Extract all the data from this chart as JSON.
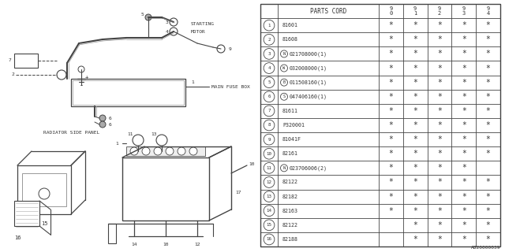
{
  "bg_color": "#ffffff",
  "diagram_code": "A820000039",
  "rows": [
    {
      "num": "1",
      "code": "81601",
      "prefix": "",
      "stars": [
        1,
        1,
        1,
        1,
        1
      ]
    },
    {
      "num": "2",
      "code": "81608",
      "prefix": "",
      "stars": [
        1,
        1,
        1,
        1,
        1
      ]
    },
    {
      "num": "3",
      "code": "021708000(1)",
      "prefix": "N",
      "stars": [
        1,
        1,
        1,
        1,
        1
      ]
    },
    {
      "num": "4",
      "code": "032008000(1)",
      "prefix": "W",
      "stars": [
        1,
        1,
        1,
        1,
        1
      ]
    },
    {
      "num": "5",
      "code": "011508160(1)",
      "prefix": "B",
      "stars": [
        1,
        1,
        1,
        1,
        1
      ]
    },
    {
      "num": "6",
      "code": "047406160(1)",
      "prefix": "S",
      "stars": [
        1,
        1,
        1,
        1,
        1
      ]
    },
    {
      "num": "7",
      "code": "81611",
      "prefix": "",
      "stars": [
        1,
        1,
        1,
        1,
        1
      ]
    },
    {
      "num": "8",
      "code": "P320001",
      "prefix": "",
      "stars": [
        1,
        1,
        1,
        1,
        1
      ]
    },
    {
      "num": "9",
      "code": "81041F",
      "prefix": "",
      "stars": [
        1,
        1,
        1,
        1,
        1
      ]
    },
    {
      "num": "10",
      "code": "82161",
      "prefix": "",
      "stars": [
        1,
        1,
        1,
        1,
        1
      ]
    },
    {
      "num": "11",
      "code": "023706006(2)",
      "prefix": "N",
      "stars": [
        1,
        1,
        1,
        1,
        0
      ]
    },
    {
      "num": "12",
      "code": "82122",
      "prefix": "",
      "stars": [
        1,
        1,
        1,
        1,
        1
      ]
    },
    {
      "num": "13",
      "code": "82182",
      "prefix": "",
      "stars": [
        1,
        1,
        1,
        1,
        1
      ]
    },
    {
      "num": "14",
      "code": "82163",
      "prefix": "",
      "stars": [
        1,
        1,
        1,
        1,
        1
      ]
    },
    {
      "num": "15",
      "code": "82122",
      "prefix": "",
      "stars": [
        0,
        1,
        1,
        1,
        1
      ]
    },
    {
      "num": "16",
      "code": "82188",
      "prefix": "",
      "stars": [
        0,
        1,
        1,
        1,
        1
      ]
    }
  ],
  "year_labels": [
    [
      "9",
      "0"
    ],
    [
      "9",
      "1"
    ],
    [
      "9",
      "2"
    ],
    [
      "9",
      "3"
    ],
    [
      "9",
      "4"
    ]
  ]
}
